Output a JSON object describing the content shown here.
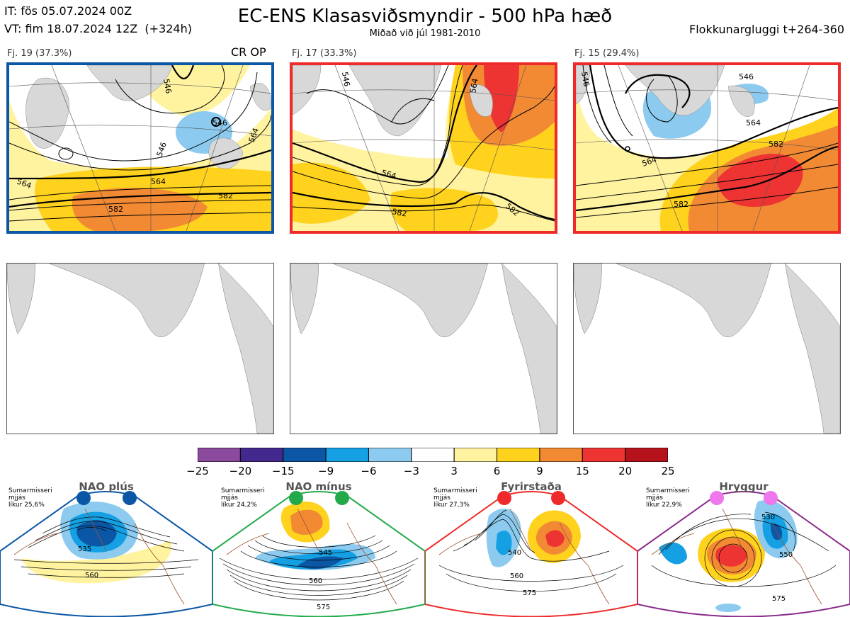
{
  "header": {
    "init_time": "IT: fös 05.07.2024 00Z",
    "valid_time": "VT: fim 18.07.2024 12Z  (+324h)",
    "title": "EC-ENS Klasasviðsmyndir - 500 hPa hæð",
    "subtitle": "Miðað við júl 1981-2010",
    "cluster_window": "Flokkunargluggi t+264-360"
  },
  "clusters": [
    {
      "label": "Fj. 19 (37.3%)",
      "tag": "CR OP",
      "border_color": "#0b57a6",
      "contours": [
        "546",
        "546",
        "546",
        "564",
        "564",
        "564",
        "582",
        "582"
      ]
    },
    {
      "label": "Fj. 17 (33.3%)",
      "tag": "",
      "border_color": "#ee2a2a",
      "contours": [
        "546",
        "564",
        "564",
        "582",
        "582"
      ]
    },
    {
      "label": "Fj. 15 (29.4%)",
      "tag": "",
      "border_color": "#ee2a2a",
      "contours": [
        "546",
        "546",
        "564",
        "564",
        "582",
        "582"
      ]
    }
  ],
  "colorbar": {
    "ticks": [
      "−25",
      "−20",
      "−15",
      "−9",
      "−6",
      "−3",
      "3",
      "6",
      "9",
      "15",
      "20",
      "25"
    ],
    "colors": [
      "#8b4a9e",
      "#43298e",
      "#0b57a6",
      "#14a0e3",
      "#8ccbef",
      "#ffffff",
      "#fff3a0",
      "#ffd21e",
      "#f28a34",
      "#ee3333",
      "#b5121b"
    ]
  },
  "regimes": [
    {
      "name": "NAO plús",
      "info": "Sumarmisseri\nmjjás\nlíkur 25,6%",
      "color": "#0b57a6",
      "contours": [
        "535",
        "560"
      ]
    },
    {
      "name": "NAO mínus",
      "info": "Sumarmisseri\nmjjás\nlíkur 24,2%",
      "color": "#22aa4a",
      "contours": [
        "545",
        "560",
        "575"
      ]
    },
    {
      "name": "Fyrirstaða",
      "info": "Sumarmisseri\nmjjás\nlíkur 27,3%",
      "color": "#ee2a2a",
      "contours": [
        "540",
        "560",
        "575"
      ]
    },
    {
      "name": "Hryggur",
      "info": "Sumarmisseri\nmjjás\nlíkur 22,9%",
      "color": "#ee77ee",
      "contours": [
        "530",
        "550",
        "575"
      ]
    }
  ]
}
